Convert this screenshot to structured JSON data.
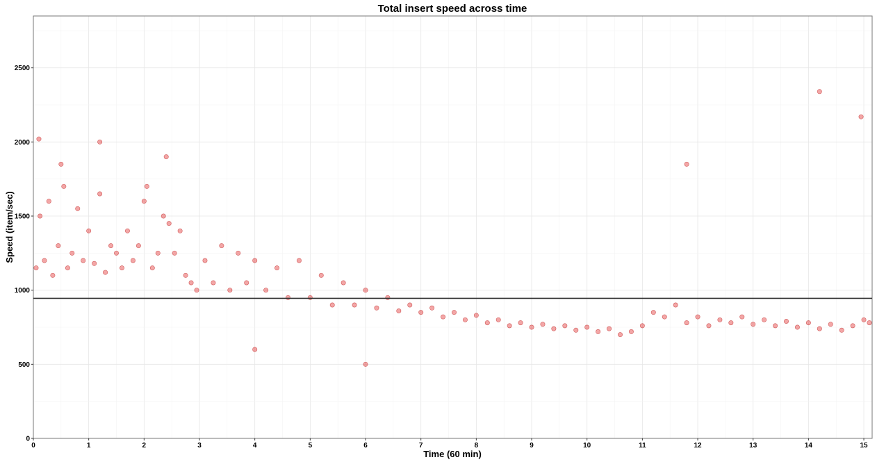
{
  "chart_data": {
    "type": "scatter",
    "title": "Total insert speed across time",
    "xlabel": "Time (60 min)",
    "ylabel": "Speed (item/sec)",
    "xlim": [
      0,
      15.15
    ],
    "ylim": [
      0,
      2850
    ],
    "x_ticks": [
      0,
      1,
      2,
      3,
      4,
      5,
      6,
      7,
      8,
      9,
      10,
      11,
      12,
      13,
      14,
      15
    ],
    "y_ticks": [
      0,
      500,
      1000,
      1500,
      2000,
      2500
    ],
    "grid": true,
    "legend": "none",
    "point_color": "#dd0000",
    "point_stroke": "#b00000",
    "point_opacity": 0.35,
    "reference_line": {
      "y": 945,
      "color": "#333333"
    },
    "series": [
      {
        "x": [
          0.05,
          0.12,
          0.2,
          0.28,
          0.35,
          0.45,
          0.55,
          0.62,
          0.7,
          0.8,
          0.9,
          1.0,
          1.1,
          1.2,
          1.3,
          1.4,
          1.5,
          1.6,
          1.7,
          1.8,
          1.9,
          2.0,
          2.05,
          2.15,
          2.25,
          2.35,
          2.45,
          2.55,
          2.65,
          2.75,
          2.85,
          2.95,
          3.1,
          3.25,
          3.4,
          3.55,
          3.7,
          3.85,
          4.0,
          4.2,
          4.4,
          4.6,
          4.8,
          5.0,
          5.2,
          5.4,
          5.6,
          5.8,
          6.0,
          6.2,
          6.4,
          6.6,
          6.8,
          7.0,
          7.2,
          7.4,
          7.6,
          7.8,
          8.0,
          8.2,
          8.4,
          8.6,
          8.8,
          9.0,
          9.2,
          9.4,
          9.6,
          9.8,
          10.0,
          10.2,
          10.4,
          10.6,
          10.8,
          11.0,
          11.2,
          11.4,
          11.6,
          11.8,
          12.0,
          12.2,
          12.4,
          12.6,
          12.8,
          13.0,
          13.2,
          13.4,
          13.6,
          13.8,
          14.0,
          14.2,
          14.4,
          14.6,
          14.8,
          15.0,
          15.1,
          0.1,
          0.5,
          1.2,
          2.4,
          11.8,
          14.2,
          14.95,
          4.0,
          6.0
        ],
        "y": [
          1150,
          1500,
          1200,
          1600,
          1100,
          1300,
          1700,
          1150,
          1250,
          1550,
          1200,
          1400,
          1180,
          1650,
          1120,
          1300,
          1250,
          1150,
          1400,
          1200,
          1300,
          1600,
          1700,
          1150,
          1250,
          1500,
          1450,
          1250,
          1400,
          1100,
          1050,
          1000,
          1200,
          1050,
          1300,
          1000,
          1250,
          1050,
          1200,
          1000,
          1150,
          950,
          1200,
          950,
          1100,
          900,
          1050,
          900,
          1000,
          880,
          950,
          860,
          900,
          850,
          880,
          820,
          850,
          800,
          830,
          780,
          800,
          760,
          780,
          750,
          770,
          740,
          760,
          730,
          750,
          720,
          740,
          700,
          720,
          760,
          850,
          820,
          900,
          780,
          820,
          760,
          800,
          780,
          820,
          770,
          800,
          760,
          790,
          750,
          780,
          740,
          770,
          730,
          760,
          800,
          780,
          2020,
          1850,
          2000,
          1900,
          1850,
          2340,
          2170,
          600,
          500
        ]
      }
    ]
  }
}
